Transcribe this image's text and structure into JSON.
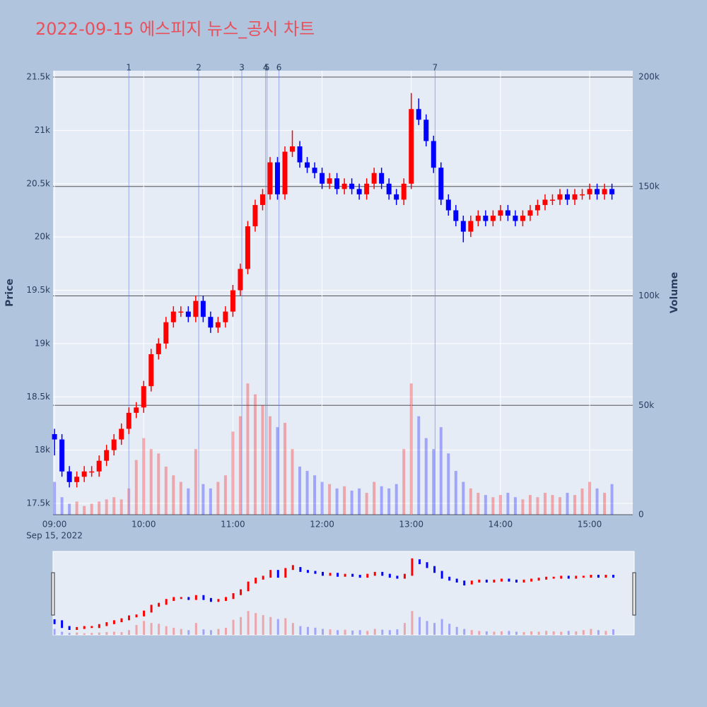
{
  "chart_data": {
    "type": "candlestick",
    "title": "2022-09-15 에스피지 뉴스_공시 차트",
    "y_label": "Price",
    "y2_label": "Volume",
    "x_date_label": "Sep 15, 2022",
    "x": [
      "09:00",
      "09:05",
      "09:10",
      "09:15",
      "09:20",
      "09:25",
      "09:30",
      "09:35",
      "09:40",
      "09:45",
      "09:50",
      "09:55",
      "10:00",
      "10:05",
      "10:10",
      "10:15",
      "10:20",
      "10:25",
      "10:30",
      "10:35",
      "10:40",
      "10:45",
      "10:50",
      "10:55",
      "11:00",
      "11:05",
      "11:10",
      "11:15",
      "11:20",
      "11:25",
      "11:30",
      "11:35",
      "11:40",
      "11:45",
      "11:50",
      "11:55",
      "12:00",
      "12:05",
      "12:10",
      "12:15",
      "12:20",
      "12:25",
      "12:30",
      "12:35",
      "12:40",
      "12:45",
      "12:50",
      "12:55",
      "13:00",
      "13:05",
      "13:10",
      "13:15",
      "13:20",
      "13:25",
      "13:30",
      "13:35",
      "13:40",
      "13:45",
      "13:50",
      "13:55",
      "14:00",
      "14:05",
      "14:10",
      "14:15",
      "14:20",
      "14:25",
      "14:30",
      "14:35",
      "14:40",
      "14:45",
      "14:50",
      "14:55",
      "15:00",
      "15:05",
      "15:10",
      "15:15"
    ],
    "open": [
      18150,
      18100,
      17800,
      17700,
      17750,
      17800,
      17800,
      17900,
      18000,
      18100,
      18200,
      18350,
      18400,
      18600,
      18900,
      19000,
      19200,
      19300,
      19300,
      19250,
      19400,
      19250,
      19150,
      19200,
      19300,
      19500,
      19700,
      20100,
      20300,
      20400,
      20700,
      20400,
      20800,
      20850,
      20700,
      20650,
      20600,
      20500,
      20550,
      20450,
      20500,
      20450,
      20400,
      20500,
      20600,
      20500,
      20400,
      20350,
      20500,
      21200,
      21100,
      20900,
      20650,
      20350,
      20250,
      20150,
      20050,
      20150,
      20200,
      20150,
      20200,
      20250,
      20200,
      20150,
      20200,
      20250,
      20300,
      20350,
      20350,
      20400,
      20350,
      20400,
      20400,
      20450,
      20400,
      20450
    ],
    "high": [
      18200,
      18150,
      17850,
      17800,
      17850,
      17850,
      17950,
      18050,
      18150,
      18250,
      18400,
      18450,
      18650,
      18950,
      19050,
      19250,
      19350,
      19350,
      19350,
      19450,
      19450,
      19300,
      19250,
      19350,
      19550,
      19750,
      20150,
      20350,
      20450,
      20750,
      20750,
      20850,
      21000,
      20900,
      20750,
      20700,
      20650,
      20600,
      20600,
      20550,
      20550,
      20500,
      20550,
      20650,
      20650,
      20550,
      20450,
      20550,
      21350,
      21300,
      21150,
      20950,
      20700,
      20400,
      20300,
      20200,
      20200,
      20250,
      20250,
      20250,
      20300,
      20300,
      20250,
      20250,
      20300,
      20350,
      20400,
      20400,
      20450,
      20450,
      20450,
      20450,
      20500,
      20500,
      20500,
      20500
    ],
    "low": [
      17950,
      17750,
      17650,
      17650,
      17700,
      17750,
      17750,
      17850,
      17950,
      18050,
      18150,
      18300,
      18350,
      18550,
      18850,
      18950,
      19150,
      19250,
      19200,
      19200,
      19200,
      19100,
      19100,
      19150,
      19250,
      19450,
      19650,
      20050,
      20250,
      20350,
      20350,
      20350,
      20750,
      20650,
      20600,
      20550,
      20450,
      20450,
      20400,
      20400,
      20400,
      20350,
      20350,
      20450,
      20450,
      20350,
      20300,
      20300,
      20450,
      21050,
      20850,
      20600,
      20300,
      20200,
      20100,
      19950,
      20000,
      20100,
      20100,
      20100,
      20150,
      20150,
      20100,
      20100,
      20150,
      20200,
      20250,
      20300,
      20300,
      20300,
      20300,
      20350,
      20350,
      20350,
      20350,
      20350
    ],
    "close": [
      18100,
      17800,
      17700,
      17750,
      17800,
      17800,
      17900,
      18000,
      18100,
      18200,
      18350,
      18400,
      18600,
      18900,
      19000,
      19200,
      19300,
      19300,
      19250,
      19400,
      19250,
      19150,
      19200,
      19300,
      19500,
      19700,
      20100,
      20300,
      20400,
      20700,
      20400,
      20800,
      20850,
      20700,
      20650,
      20600,
      20500,
      20550,
      20450,
      20500,
      20450,
      20400,
      20500,
      20600,
      20500,
      20400,
      20350,
      20500,
      21200,
      21100,
      20900,
      20650,
      20350,
      20250,
      20150,
      20050,
      20150,
      20200,
      20150,
      20200,
      20250,
      20200,
      20150,
      20200,
      20250,
      20300,
      20350,
      20350,
      20400,
      20350,
      20400,
      20400,
      20450,
      20400,
      20450,
      20400
    ],
    "volume": [
      15000,
      8000,
      5000,
      6000,
      4000,
      5000,
      6000,
      7000,
      8000,
      7000,
      12000,
      25000,
      35000,
      30000,
      28000,
      22000,
      18000,
      15000,
      12000,
      30000,
      14000,
      12000,
      15000,
      18000,
      38000,
      45000,
      60000,
      55000,
      50000,
      45000,
      40000,
      42000,
      30000,
      22000,
      20000,
      18000,
      15000,
      14000,
      12000,
      13000,
      11000,
      12000,
      10000,
      15000,
      13000,
      12000,
      14000,
      30000,
      60000,
      45000,
      35000,
      30000,
      40000,
      28000,
      20000,
      15000,
      12000,
      10000,
      9000,
      8000,
      9000,
      10000,
      8000,
      7000,
      9000,
      8000,
      10000,
      9000,
      8000,
      10000,
      9000,
      12000,
      15000,
      12000,
      10000,
      14000
    ],
    "increasing_color": "#ff0000",
    "decreasing_color": "#0000ff",
    "events": [
      {
        "x": "09:50",
        "label": "1"
      },
      {
        "x": "10:37",
        "label": "2"
      },
      {
        "x": "11:06",
        "label": "3"
      },
      {
        "x": "11:22",
        "label": "4"
      },
      {
        "x": "11:23",
        "label": "5"
      },
      {
        "x": "11:31",
        "label": "6"
      },
      {
        "x": "13:16",
        "label": "7"
      }
    ],
    "xlim": [
      "08:59",
      "15:29"
    ],
    "xticks": [
      "09:00",
      "10:00",
      "11:00",
      "12:00",
      "13:00",
      "14:00",
      "15:00"
    ],
    "ylim": [
      17394,
      21560
    ],
    "yticks": [
      {
        "value": 17500,
        "label": "17.5k"
      },
      {
        "value": 18000,
        "label": "18k"
      },
      {
        "value": 18500,
        "label": "18.5k"
      },
      {
        "value": 19000,
        "label": "19k"
      },
      {
        "value": 19500,
        "label": "19.5k"
      },
      {
        "value": 20000,
        "label": "20k"
      },
      {
        "value": 20500,
        "label": "20.5k"
      },
      {
        "value": 21000,
        "label": "21k"
      },
      {
        "value": 21500,
        "label": "21.5k"
      }
    ],
    "y2lim": [
      0,
      202908
    ],
    "y2ticks": [
      0,
      {
        "value": 50000,
        "label": "50k"
      },
      {
        "value": 100000,
        "label": "100k"
      },
      {
        "value": 150000,
        "label": "150k"
      },
      {
        "value": 200000,
        "label": "200k"
      }
    ],
    "grid": true,
    "rangeslider": true
  }
}
